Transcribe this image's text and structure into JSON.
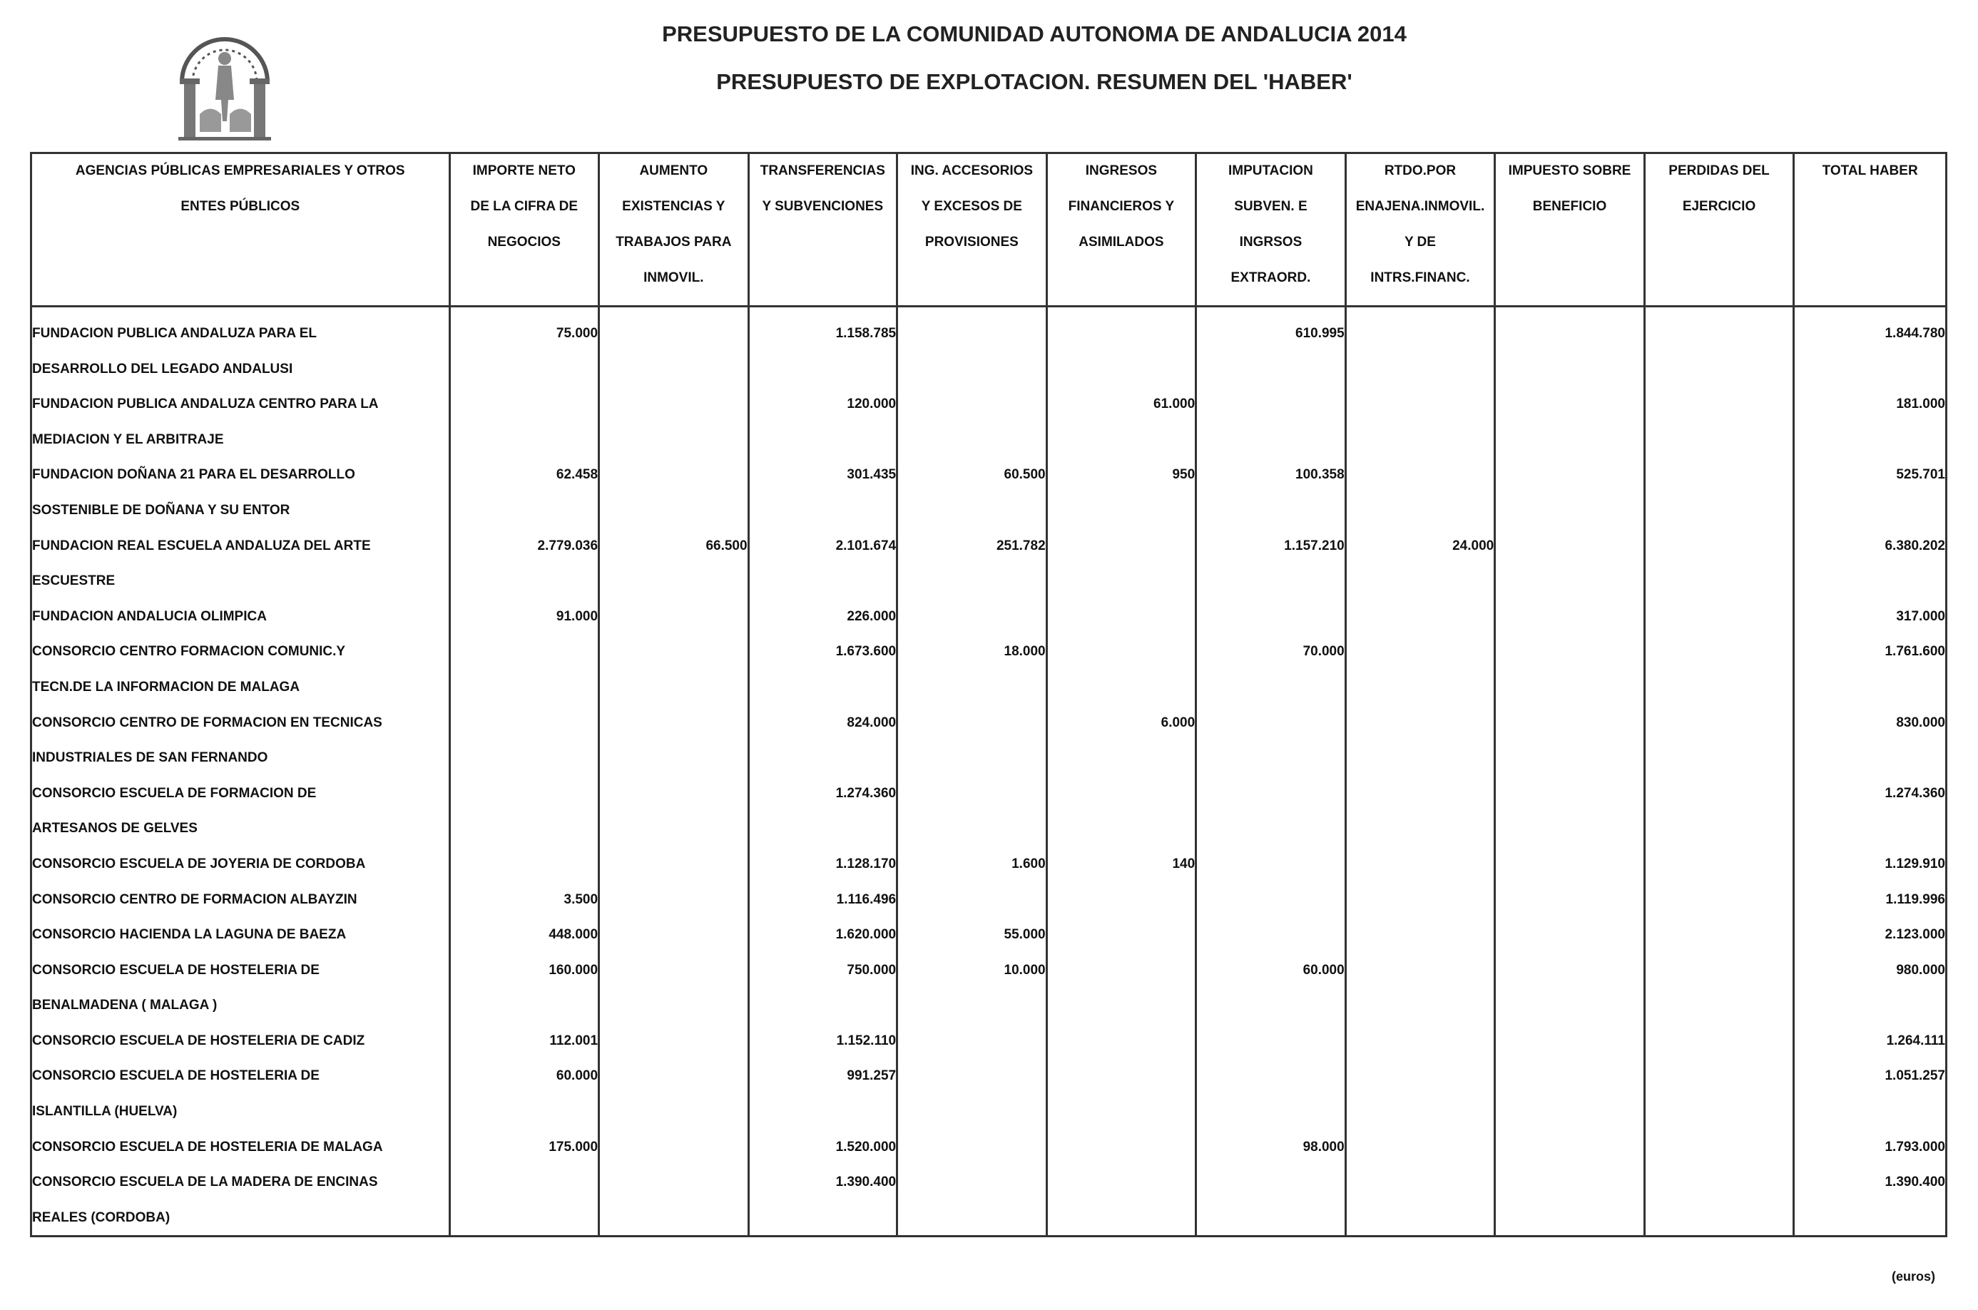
{
  "header": {
    "title": "PRESUPUESTO DE LA COMUNIDAD AUTONOMA DE ANDALUCIA 2014",
    "subtitle": "PRESUPUESTO DE EXPLOTACION. RESUMEN DEL 'HABER'"
  },
  "columns": [
    [
      "AGENCIAS PÚBLICAS EMPRESARIALES Y OTROS",
      "ENTES PÚBLICOS"
    ],
    [
      "IMPORTE NETO",
      "DE LA CIFRA DE",
      "NEGOCIOS"
    ],
    [
      "AUMENTO",
      "EXISTENCIAS Y",
      "TRABAJOS PARA",
      "INMOVIL."
    ],
    [
      "TRANSFERENCIAS",
      "Y SUBVENCIONES"
    ],
    [
      "ING. ACCESORIOS",
      "Y EXCESOS DE",
      "PROVISIONES"
    ],
    [
      "INGRESOS",
      "FINANCIEROS Y",
      "ASIMILADOS"
    ],
    [
      "IMPUTACION",
      "SUBVEN. E",
      "INGRSOS",
      "EXTRAORD."
    ],
    [
      "RTDO.POR",
      "ENAJENA.INMOVIL.",
      "Y DE",
      "INTRS.FINANC."
    ],
    [
      "IMPUESTO SOBRE",
      "BENEFICIO"
    ],
    [
      "PERDIDAS DEL",
      "EJERCICIO"
    ],
    [
      "TOTAL HABER"
    ]
  ],
  "rows": [
    [
      "FUNDACION PUBLICA ANDALUZA PARA EL",
      "75.000",
      "",
      "1.158.785",
      "",
      "",
      "610.995",
      "",
      "",
      "",
      "1.844.780"
    ],
    [
      "DESARROLLO DEL LEGADO ANDALUSI",
      "",
      "",
      "",
      "",
      "",
      "",
      "",
      "",
      "",
      ""
    ],
    [
      "FUNDACION PUBLICA ANDALUZA CENTRO PARA LA",
      "",
      "",
      "120.000",
      "",
      "61.000",
      "",
      "",
      "",
      "",
      "181.000"
    ],
    [
      "MEDIACION Y EL ARBITRAJE",
      "",
      "",
      "",
      "",
      "",
      "",
      "",
      "",
      "",
      ""
    ],
    [
      "FUNDACION DOÑANA 21 PARA EL DESARROLLO",
      "62.458",
      "",
      "301.435",
      "60.500",
      "950",
      "100.358",
      "",
      "",
      "",
      "525.701"
    ],
    [
      "SOSTENIBLE DE DOÑANA Y SU ENTOR",
      "",
      "",
      "",
      "",
      "",
      "",
      "",
      "",
      "",
      ""
    ],
    [
      "FUNDACION REAL ESCUELA ANDALUZA DEL ARTE",
      "2.779.036",
      "66.500",
      "2.101.674",
      "251.782",
      "",
      "1.157.210",
      "24.000",
      "",
      "",
      "6.380.202"
    ],
    [
      "ESCUESTRE",
      "",
      "",
      "",
      "",
      "",
      "",
      "",
      "",
      "",
      ""
    ],
    [
      "FUNDACION ANDALUCIA OLIMPICA",
      "91.000",
      "",
      "226.000",
      "",
      "",
      "",
      "",
      "",
      "",
      "317.000"
    ],
    [
      "CONSORCIO CENTRO FORMACION COMUNIC.Y",
      "",
      "",
      "1.673.600",
      "18.000",
      "",
      "70.000",
      "",
      "",
      "",
      "1.761.600"
    ],
    [
      "TECN.DE LA INFORMACION DE MALAGA",
      "",
      "",
      "",
      "",
      "",
      "",
      "",
      "",
      "",
      ""
    ],
    [
      "CONSORCIO CENTRO DE FORMACION EN TECNICAS",
      "",
      "",
      "824.000",
      "",
      "6.000",
      "",
      "",
      "",
      "",
      "830.000"
    ],
    [
      "INDUSTRIALES DE SAN FERNANDO",
      "",
      "",
      "",
      "",
      "",
      "",
      "",
      "",
      "",
      ""
    ],
    [
      "CONSORCIO ESCUELA DE FORMACION DE",
      "",
      "",
      "1.274.360",
      "",
      "",
      "",
      "",
      "",
      "",
      "1.274.360"
    ],
    [
      "ARTESANOS DE GELVES",
      "",
      "",
      "",
      "",
      "",
      "",
      "",
      "",
      "",
      ""
    ],
    [
      "CONSORCIO ESCUELA DE JOYERIA DE CORDOBA",
      "",
      "",
      "1.128.170",
      "1.600",
      "140",
      "",
      "",
      "",
      "",
      "1.129.910"
    ],
    [
      "CONSORCIO CENTRO DE FORMACION ALBAYZIN",
      "3.500",
      "",
      "1.116.496",
      "",
      "",
      "",
      "",
      "",
      "",
      "1.119.996"
    ],
    [
      "CONSORCIO HACIENDA LA LAGUNA DE BAEZA",
      "448.000",
      "",
      "1.620.000",
      "55.000",
      "",
      "",
      "",
      "",
      "",
      "2.123.000"
    ],
    [
      "CONSORCIO ESCUELA DE HOSTELERIA DE",
      "160.000",
      "",
      "750.000",
      "10.000",
      "",
      "60.000",
      "",
      "",
      "",
      "980.000"
    ],
    [
      "BENALMADENA ( MALAGA )",
      "",
      "",
      "",
      "",
      "",
      "",
      "",
      "",
      "",
      ""
    ],
    [
      "CONSORCIO ESCUELA DE HOSTELERIA DE CADIZ",
      "112.001",
      "",
      "1.152.110",
      "",
      "",
      "",
      "",
      "",
      "",
      "1.264.111"
    ],
    [
      "CONSORCIO ESCUELA DE HOSTELERIA DE",
      "60.000",
      "",
      "991.257",
      "",
      "",
      "",
      "",
      "",
      "",
      "1.051.257"
    ],
    [
      "ISLANTILLA (HUELVA)",
      "",
      "",
      "",
      "",
      "",
      "",
      "",
      "",
      "",
      ""
    ],
    [
      "CONSORCIO ESCUELA DE HOSTELERIA DE MALAGA",
      "175.000",
      "",
      "1.520.000",
      "",
      "",
      "98.000",
      "",
      "",
      "",
      "1.793.000"
    ],
    [
      "CONSORCIO ESCUELA DE LA MADERA DE ENCINAS",
      "",
      "",
      "1.390.400",
      "",
      "",
      "",
      "",
      "",
      "",
      "1.390.400"
    ],
    [
      "REALES (CORDOBA)",
      "",
      "",
      "",
      "",
      "",
      "",
      "",
      "",
      "",
      ""
    ]
  ],
  "footer": {
    "units": "(euros)"
  }
}
